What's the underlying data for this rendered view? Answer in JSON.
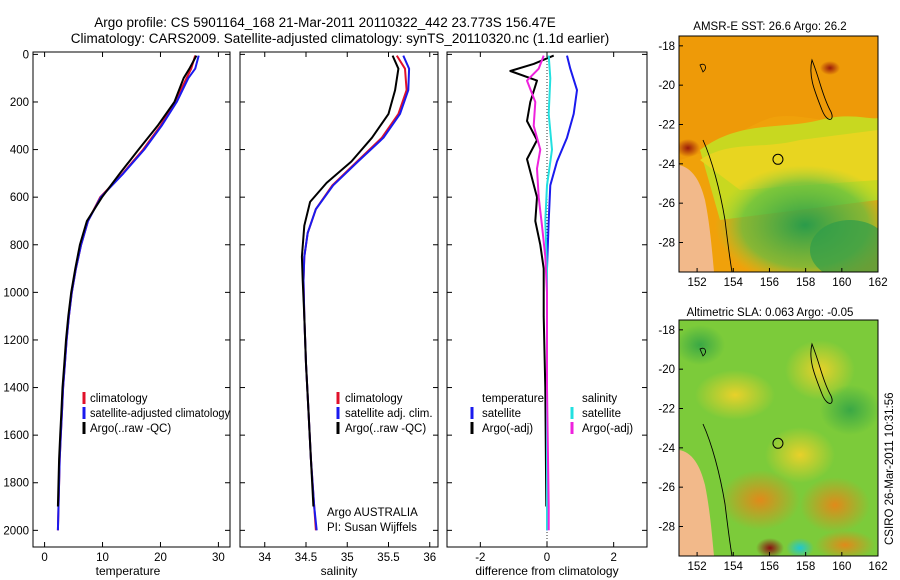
{
  "title": {
    "line1": "Argo profile: CS 5901164_168 21-Mar-2011 20110322_442 23.773S 156.47E",
    "line2": "Climatology: CARS2009. Satellite-adjusted climatology: synTS_20110320.nc (1.1d earlier)"
  },
  "footer": "CSIRO 26-Mar-2011 10:31:56",
  "colors": {
    "climatology": "#e0102a",
    "satellite": "#1a1aee",
    "argo": "#000000",
    "sal_satellite": "#22e0e0",
    "sal_argo": "#ee22dd",
    "land": "#f2b98a",
    "sst_cold": "#2a9b4a"
  },
  "chart_data": [
    {
      "type": "line",
      "id": "temperature",
      "xlabel": "temperature",
      "xlim": [
        -2,
        32
      ],
      "xticks": [
        0,
        10,
        20,
        30
      ],
      "ylim": [
        2070,
        -10
      ],
      "yticks": [
        0,
        200,
        400,
        600,
        800,
        1000,
        1200,
        1400,
        1600,
        1800,
        2000
      ],
      "legend": [
        "climatology",
        "satellite-adjusted climatology",
        "Argo(..raw -QC)"
      ],
      "series": [
        {
          "name": "climatology",
          "color": "#e0102a",
          "points": [
            [
              26.0,
              5
            ],
            [
              25.3,
              60
            ],
            [
              24.5,
              100
            ],
            [
              22.5,
              200
            ],
            [
              20.0,
              300
            ],
            [
              17.0,
              400
            ],
            [
              13.5,
              500
            ],
            [
              9.6,
              600
            ],
            [
              7.5,
              700
            ],
            [
              6.3,
              800
            ],
            [
              5.4,
              900
            ],
            [
              4.7,
              1000
            ],
            [
              4.2,
              1100
            ],
            [
              3.8,
              1200
            ],
            [
              3.5,
              1300
            ],
            [
              3.2,
              1400
            ],
            [
              3.0,
              1500
            ],
            [
              2.8,
              1600
            ],
            [
              2.6,
              1700
            ],
            [
              2.5,
              1800
            ],
            [
              2.4,
              1900
            ],
            [
              2.3,
              2000
            ]
          ]
        },
        {
          "name": "satellite-adjusted climatology",
          "color": "#1a1aee",
          "points": [
            [
              26.6,
              5
            ],
            [
              26.0,
              60
            ],
            [
              24.8,
              100
            ],
            [
              22.8,
              200
            ],
            [
              20.2,
              300
            ],
            [
              17.2,
              400
            ],
            [
              13.6,
              500
            ],
            [
              9.7,
              600
            ],
            [
              7.5,
              700
            ],
            [
              6.3,
              800
            ],
            [
              5.4,
              900
            ],
            [
              4.7,
              1000
            ],
            [
              4.2,
              1100
            ],
            [
              3.8,
              1200
            ],
            [
              3.5,
              1300
            ],
            [
              3.2,
              1400
            ],
            [
              3.0,
              1500
            ],
            [
              2.8,
              1600
            ],
            [
              2.6,
              1700
            ],
            [
              2.5,
              1800
            ],
            [
              2.4,
              1900
            ],
            [
              2.3,
              2000
            ]
          ]
        },
        {
          "name": "Argo(..raw -QC)",
          "color": "#000000",
          "points": [
            [
              26.2,
              5
            ],
            [
              25.0,
              60
            ],
            [
              24.0,
              100
            ],
            [
              22.4,
              200
            ],
            [
              19.5,
              300
            ],
            [
              16.2,
              400
            ],
            [
              13.0,
              500
            ],
            [
              9.9,
              600
            ],
            [
              7.3,
              700
            ],
            [
              6.1,
              800
            ],
            [
              5.3,
              900
            ],
            [
              4.6,
              1000
            ],
            [
              4.1,
              1100
            ],
            [
              3.7,
              1200
            ],
            [
              3.4,
              1300
            ],
            [
              3.1,
              1400
            ],
            [
              2.9,
              1500
            ],
            [
              2.7,
              1600
            ],
            [
              2.5,
              1700
            ],
            [
              2.4,
              1800
            ],
            [
              2.3,
              1900
            ]
          ]
        }
      ]
    },
    {
      "type": "line",
      "id": "salinity",
      "xlabel": "salinity",
      "xlim": [
        33.7,
        36.1
      ],
      "xticks": [
        34,
        34.5,
        35,
        35.5,
        36
      ],
      "ylim": [
        2070,
        -10
      ],
      "yticks": [
        0,
        200,
        400,
        600,
        800,
        1000,
        1200,
        1400,
        1600,
        1800,
        2000
      ],
      "legend": [
        "climatology",
        "satellite adj. clim.",
        "Argo(..raw -QC)"
      ],
      "annotation": [
        "Argo AUSTRALIA",
        "PI: Susan Wijffels"
      ],
      "series": [
        {
          "name": "climatology",
          "color": "#e0102a",
          "points": [
            [
              35.6,
              5
            ],
            [
              35.7,
              60
            ],
            [
              35.72,
              150
            ],
            [
              35.62,
              250
            ],
            [
              35.42,
              350
            ],
            [
              35.12,
              450
            ],
            [
              34.82,
              550
            ],
            [
              34.62,
              650
            ],
            [
              34.52,
              750
            ],
            [
              34.48,
              850
            ],
            [
              34.47,
              950
            ],
            [
              34.48,
              1100
            ],
            [
              34.5,
              1300
            ],
            [
              34.53,
              1500
            ],
            [
              34.56,
              1700
            ],
            [
              34.6,
              1900
            ],
            [
              34.62,
              2000
            ]
          ]
        },
        {
          "name": "satellite adj. clim.",
          "color": "#1a1aee",
          "points": [
            [
              35.68,
              5
            ],
            [
              35.75,
              60
            ],
            [
              35.74,
              150
            ],
            [
              35.64,
              250
            ],
            [
              35.44,
              350
            ],
            [
              35.13,
              450
            ],
            [
              34.83,
              550
            ],
            [
              34.62,
              650
            ],
            [
              34.52,
              750
            ],
            [
              34.48,
              850
            ],
            [
              34.47,
              950
            ],
            [
              34.48,
              1100
            ],
            [
              34.5,
              1300
            ],
            [
              34.53,
              1500
            ],
            [
              34.56,
              1700
            ],
            [
              34.6,
              1900
            ],
            [
              34.63,
              2000
            ]
          ]
        },
        {
          "name": "Argo(..raw -QC)",
          "color": "#000000",
          "points": [
            [
              35.55,
              5
            ],
            [
              35.62,
              60
            ],
            [
              35.58,
              150
            ],
            [
              35.5,
              250
            ],
            [
              35.3,
              350
            ],
            [
              35.05,
              450
            ],
            [
              34.75,
              540
            ],
            [
              34.55,
              620
            ],
            [
              34.48,
              720
            ],
            [
              34.45,
              850
            ],
            [
              34.46,
              950
            ],
            [
              34.48,
              1100
            ],
            [
              34.5,
              1300
            ],
            [
              34.53,
              1500
            ],
            [
              34.56,
              1700
            ],
            [
              34.59,
              1900
            ]
          ]
        }
      ]
    },
    {
      "type": "line",
      "id": "difference",
      "xlabel": "difference from climatology",
      "xlim": [
        -3,
        3
      ],
      "xticks": [
        -2,
        0,
        2
      ],
      "ylim": [
        2070,
        -10
      ],
      "yticks": [
        0,
        200,
        400,
        600,
        800,
        1000,
        1200,
        1400,
        1600,
        1800,
        2000
      ],
      "legend_groups": [
        {
          "header": "temperature",
          "items": [
            "satellite",
            "Argo(-adj)"
          ]
        },
        {
          "header": "salinity",
          "items": [
            "satellite",
            "Argo(-adj)"
          ]
        }
      ],
      "series": [
        {
          "name": "temperature satellite",
          "color": "#1a1aee",
          "points": [
            [
              0.6,
              5
            ],
            [
              0.7,
              60
            ],
            [
              0.9,
              150
            ],
            [
              0.8,
              250
            ],
            [
              0.6,
              350
            ],
            [
              0.3,
              450
            ],
            [
              0.1,
              550
            ],
            [
              0.05,
              700
            ],
            [
              0.0,
              900
            ],
            [
              0.0,
              1300
            ],
            [
              0.0,
              1800
            ],
            [
              0.0,
              2000
            ]
          ]
        },
        {
          "name": "temperature Argo(-adj)",
          "color": "#000000",
          "points": [
            [
              0.2,
              5
            ],
            [
              -0.4,
              40
            ],
            [
              -1.1,
              70
            ],
            [
              -0.3,
              110
            ],
            [
              -0.5,
              200
            ],
            [
              -0.6,
              280
            ],
            [
              -0.3,
              360
            ],
            [
              -0.6,
              440
            ],
            [
              -0.45,
              520
            ],
            [
              -0.3,
              600
            ],
            [
              -0.35,
              700
            ],
            [
              -0.2,
              800
            ],
            [
              -0.1,
              900
            ],
            [
              -0.1,
              1100
            ],
            [
              -0.05,
              1400
            ],
            [
              -0.02,
              1900
            ]
          ]
        },
        {
          "name": "salinity satellite",
          "color": "#22e0e0",
          "points": [
            [
              0.05,
              5
            ],
            [
              0.1,
              100
            ],
            [
              0.05,
              250
            ],
            [
              0.15,
              400
            ],
            [
              0.0,
              550
            ],
            [
              -0.05,
              700
            ],
            [
              0.0,
              900
            ],
            [
              0.0,
              1300
            ],
            [
              0.0,
              1700
            ],
            [
              0.0,
              2000
            ]
          ]
        },
        {
          "name": "salinity Argo(-adj)",
          "color": "#ee22dd",
          "points": [
            [
              -0.1,
              5
            ],
            [
              -0.25,
              60
            ],
            [
              -0.6,
              110
            ],
            [
              -0.35,
              200
            ],
            [
              -0.4,
              300
            ],
            [
              -0.2,
              400
            ],
            [
              -0.3,
              480
            ],
            [
              -0.25,
              600
            ],
            [
              -0.15,
              720
            ],
            [
              -0.05,
              850
            ],
            [
              0.0,
              1000
            ],
            [
              0.0,
              1400
            ],
            [
              0.05,
              1900
            ],
            [
              0.05,
              2000
            ]
          ]
        }
      ]
    },
    {
      "type": "heatmap",
      "id": "sst-map",
      "title": "AMSR-E SST: 26.6 Argo: 26.2",
      "xlim": [
        151,
        162
      ],
      "ylim": [
        -29.5,
        -17.5
      ],
      "xticks": [
        152,
        154,
        156,
        158,
        160,
        162
      ],
      "yticks": [
        -18,
        -20,
        -22,
        -24,
        -26,
        -28
      ],
      "marker": {
        "lon": 156.47,
        "lat": -23.77
      }
    },
    {
      "type": "heatmap",
      "id": "sla-map",
      "title": "Altimetric SLA: 0.063 Argo: -0.05",
      "xlim": [
        151,
        162
      ],
      "ylim": [
        -29.5,
        -17.5
      ],
      "xticks": [
        152,
        154,
        156,
        158,
        160,
        162
      ],
      "yticks": [
        -18,
        -20,
        -22,
        -24,
        -26,
        -28
      ],
      "marker": {
        "lon": 156.47,
        "lat": -23.77
      }
    }
  ]
}
